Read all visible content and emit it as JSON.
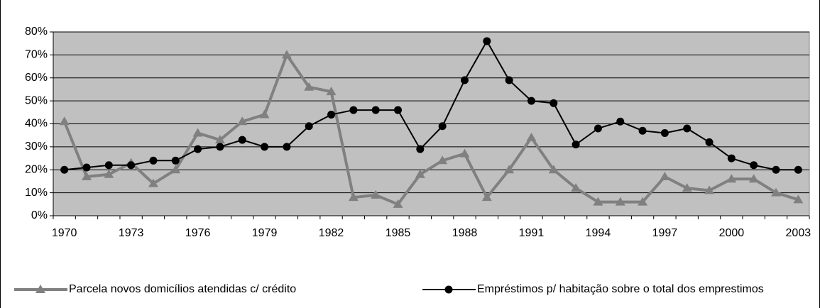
{
  "chart_data": {
    "type": "line",
    "categories": [
      "1970",
      null,
      null,
      "1973",
      null,
      null,
      "1976",
      null,
      null,
      "1979",
      null,
      null,
      "1982",
      null,
      null,
      "1985",
      null,
      null,
      "1988",
      null,
      null,
      "1991",
      null,
      null,
      "1994",
      null,
      null,
      "1997",
      null,
      null,
      "2000",
      null,
      null,
      "2003"
    ],
    "series": [
      {
        "name": "Parcela novos domicílios atendidas c/ crédito",
        "color": "#808080",
        "marker": "triangle",
        "values": [
          41,
          17,
          18,
          23,
          14,
          20,
          36,
          33,
          41,
          44,
          70,
          56,
          54,
          8,
          9,
          5,
          18,
          24,
          27,
          8,
          20,
          34,
          20,
          12,
          6,
          6,
          6,
          17,
          12,
          11,
          16,
          16,
          10,
          7
        ]
      },
      {
        "name": "Empréstimos p/ habitação sobre o total dos emprestimos",
        "color": "#000000",
        "marker": "circle",
        "values": [
          20,
          21,
          22,
          22,
          24,
          24,
          29,
          30,
          33,
          30,
          30,
          39,
          44,
          46,
          46,
          46,
          29,
          39,
          59,
          76,
          59,
          50,
          49,
          31,
          38,
          41,
          37,
          36,
          38,
          32,
          25,
          22,
          20,
          20
        ]
      }
    ],
    "ylim": [
      0,
      80
    ],
    "yticks": [
      {
        "value": 0,
        "label": "0%"
      },
      {
        "value": 10,
        "label": "10%"
      },
      {
        "value": 20,
        "label": "20%"
      },
      {
        "value": 30,
        "label": "30%"
      },
      {
        "value": 40,
        "label": "40%"
      },
      {
        "value": 50,
        "label": "50%"
      },
      {
        "value": 60,
        "label": "60%"
      },
      {
        "value": 70,
        "label": "70%"
      },
      {
        "value": 80,
        "label": "80%"
      }
    ],
    "grid": true,
    "legend": "bottom",
    "plot_background": "#c0c0c0"
  }
}
